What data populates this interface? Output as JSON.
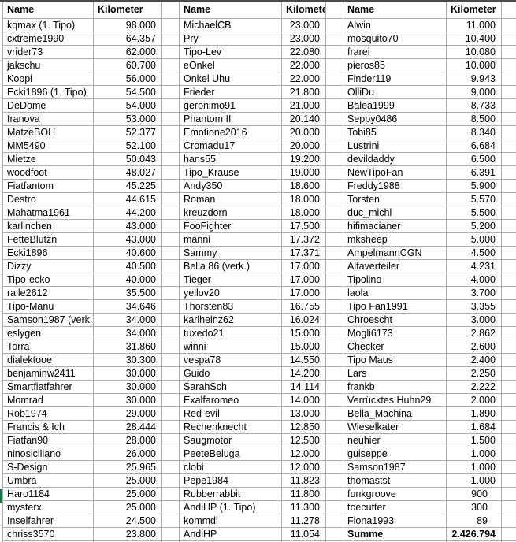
{
  "app": {
    "kind": "spreadsheet"
  },
  "colors": {
    "gridline": "#aeaeae",
    "top_edge": "#4b4b4b",
    "row_marker_green": "#1e7145",
    "text": "#000000",
    "background": "#ffffff"
  },
  "table": {
    "column_headers": {
      "name": "Name",
      "kilometer": "Kilometer"
    },
    "total_row": {
      "label": "Summe",
      "value": "2.426.794"
    },
    "row_marker": {
      "row_name": "Haro1184"
    },
    "groups": [
      {
        "rows": [
          {
            "name": "kqmax (1. Tipo)",
            "km": "98.000"
          },
          {
            "name": "cxtreme1990",
            "km": "64.357"
          },
          {
            "name": "vrider73",
            "km": "62.000"
          },
          {
            "name": "jakschu",
            "km": "60.700"
          },
          {
            "name": "Koppi",
            "km": "56.000"
          },
          {
            "name": "Ecki1896 (1. Tipo)",
            "km": "54.500"
          },
          {
            "name": "DeDome",
            "km": "54.000"
          },
          {
            "name": "franova",
            "km": "53.000"
          },
          {
            "name": "MatzeBOH",
            "km": "52.377"
          },
          {
            "name": "MM5490",
            "km": "52.100"
          },
          {
            "name": "Mietze",
            "km": "50.043"
          },
          {
            "name": "woodfoot",
            "km": "48.027"
          },
          {
            "name": "Fiatfantom",
            "km": "45.225"
          },
          {
            "name": "Destro",
            "km": "44.615"
          },
          {
            "name": "Mahatma1961",
            "km": "44.200"
          },
          {
            "name": "karlinchen",
            "km": "43.000"
          },
          {
            "name": "FetteBlutzn",
            "km": "43.000"
          },
          {
            "name": "Ecki1896",
            "km": "40.600"
          },
          {
            "name": "Dizzy",
            "km": "40.500"
          },
          {
            "name": "Tipo-ecko",
            "km": "40.000"
          },
          {
            "name": "ralle2612",
            "km": "35.500"
          },
          {
            "name": "Tipo-Manu",
            "km": "34.646"
          },
          {
            "name": "Samson1987 (verk.)",
            "km": "34.000"
          },
          {
            "name": "eslygen",
            "km": "34.000"
          },
          {
            "name": "Torra",
            "km": "31.860"
          },
          {
            "name": "dialektooe",
            "km": "30.300"
          },
          {
            "name": "benjaminw2411",
            "km": "30.000"
          },
          {
            "name": "Smartfiatfahrer",
            "km": "30.000"
          },
          {
            "name": "Momrad",
            "km": "30.000"
          },
          {
            "name": "Rob1974",
            "km": "29.000"
          },
          {
            "name": "Francis & Ich",
            "km": "28.444"
          },
          {
            "name": "Fiatfan90",
            "km": "28.000"
          },
          {
            "name": "ninosiciliano",
            "km": "26.000"
          },
          {
            "name": "S-Design",
            "km": "25.965"
          },
          {
            "name": "Umbra",
            "km": "25.000"
          },
          {
            "name": "Haro1184",
            "km": "25.000"
          },
          {
            "name": "mysterx",
            "km": "25.000"
          },
          {
            "name": "Inselfahrer",
            "km": "24.500"
          },
          {
            "name": "chriss3570",
            "km": "23.800"
          }
        ]
      },
      {
        "rows": [
          {
            "name": "MichaelCB",
            "km": "23.000"
          },
          {
            "name": "Pry",
            "km": "23.000"
          },
          {
            "name": "Tipo-Lev",
            "km": "22.080"
          },
          {
            "name": "eOnkel",
            "km": "22.000"
          },
          {
            "name": "Onkel Uhu",
            "km": "22.000"
          },
          {
            "name": "Frieder",
            "km": "21.800"
          },
          {
            "name": "geronimo91",
            "km": "21.000"
          },
          {
            "name": "Phantom II",
            "km": "20.140"
          },
          {
            "name": "Emotione2016",
            "km": "20.000"
          },
          {
            "name": "Cromadu17",
            "km": "20.000"
          },
          {
            "name": "hans55",
            "km": "19.200"
          },
          {
            "name": "Tipo_Krause",
            "km": "19.000"
          },
          {
            "name": "Andy350",
            "km": "18.600"
          },
          {
            "name": "Roman",
            "km": "18.000"
          },
          {
            "name": "kreuzdorn",
            "km": "18.000"
          },
          {
            "name": "FooFighter",
            "km": "17.500"
          },
          {
            "name": "manni",
            "km": "17.372"
          },
          {
            "name": "Sammy",
            "km": "17.371"
          },
          {
            "name": "Bella 86 (verk.)",
            "km": "17.000"
          },
          {
            "name": "Tieger",
            "km": "17.000"
          },
          {
            "name": "yellov20",
            "km": "17.000"
          },
          {
            "name": "Thorsten83",
            "km": "16.755"
          },
          {
            "name": "karlheinz62",
            "km": "16.024"
          },
          {
            "name": "tuxedo21",
            "km": "15.000"
          },
          {
            "name": "winni",
            "km": "15.000"
          },
          {
            "name": "vespa78",
            "km": "14.550"
          },
          {
            "name": "Guido",
            "km": "14.200"
          },
          {
            "name": "SarahSch",
            "km": "14.114"
          },
          {
            "name": "Exalfaromeo",
            "km": "14.000"
          },
          {
            "name": "Red-evil",
            "km": "13.000"
          },
          {
            "name": "Rechenknecht",
            "km": "12.850"
          },
          {
            "name": "Saugmotor",
            "km": "12.500"
          },
          {
            "name": "PeeteBeluga",
            "km": "12.000"
          },
          {
            "name": "clobi",
            "km": "12.000"
          },
          {
            "name": "Pepe1984",
            "km": "11.823"
          },
          {
            "name": "Rubberrabbit",
            "km": "11.800"
          },
          {
            "name": "AndiHP (1. Tipo)",
            "km": "11.300"
          },
          {
            "name": "kommdi",
            "km": "11.278"
          },
          {
            "name": "AndiHP",
            "km": "11.054"
          }
        ]
      },
      {
        "rows": [
          {
            "name": "Alwin",
            "km": "11.000"
          },
          {
            "name": "mosquito70",
            "km": "10.400"
          },
          {
            "name": "frarei",
            "km": "10.080"
          },
          {
            "name": "pieros85",
            "km": "10.000"
          },
          {
            "name": "Finder119",
            "km": "9.943"
          },
          {
            "name": "OlliDu",
            "km": "9.000"
          },
          {
            "name": "Balea1999",
            "km": "8.733"
          },
          {
            "name": "Seppy0486",
            "km": "8.500"
          },
          {
            "name": "Tobi85",
            "km": "8.340"
          },
          {
            "name": "Lustrini",
            "km": "6.684"
          },
          {
            "name": "devildaddy",
            "km": "6.500"
          },
          {
            "name": "NewTipoFan",
            "km": "6.391"
          },
          {
            "name": "Freddy1988",
            "km": "5.900"
          },
          {
            "name": "Torsten",
            "km": "5.570"
          },
          {
            "name": "duc_michl",
            "km": "5.500"
          },
          {
            "name": "hifimacianer",
            "km": "5.200"
          },
          {
            "name": "mksheep",
            "km": "5.000"
          },
          {
            "name": "AmpelmannCGN",
            "km": "4.500"
          },
          {
            "name": "Alfaverteiler",
            "km": "4.231"
          },
          {
            "name": "Tipolino",
            "km": "4.000"
          },
          {
            "name": "laola",
            "km": "3.700"
          },
          {
            "name": "Tipo Fan1991",
            "km": "3.355"
          },
          {
            "name": "Chroescht",
            "km": "3.000"
          },
          {
            "name": "Mogli6173",
            "km": "2.862"
          },
          {
            "name": "Checker",
            "km": "2.600"
          },
          {
            "name": "Tipo Maus",
            "km": "2.400"
          },
          {
            "name": "Lars",
            "km": "2.250"
          },
          {
            "name": "frankb",
            "km": "2.222"
          },
          {
            "name": "Verrücktes Huhn29",
            "km": "2.000"
          },
          {
            "name": "Bella_Machina",
            "km": "1.890"
          },
          {
            "name": "Wieselkater",
            "km": "1.684"
          },
          {
            "name": "neuhier",
            "km": "1.500"
          },
          {
            "name": "guiseppe",
            "km": "1.000"
          },
          {
            "name": "Samson1987",
            "km": "1.000"
          },
          {
            "name": "thomastst",
            "km": "1.000"
          },
          {
            "name": "funkgroove",
            "km": "900",
            "pad": true
          },
          {
            "name": "toecutter",
            "km": "300",
            "pad": true
          },
          {
            "name": "Fiona1993",
            "km": "89",
            "pad": true
          },
          {
            "name": "Summe",
            "km": "2.426.794",
            "bold": true
          }
        ]
      }
    ]
  }
}
